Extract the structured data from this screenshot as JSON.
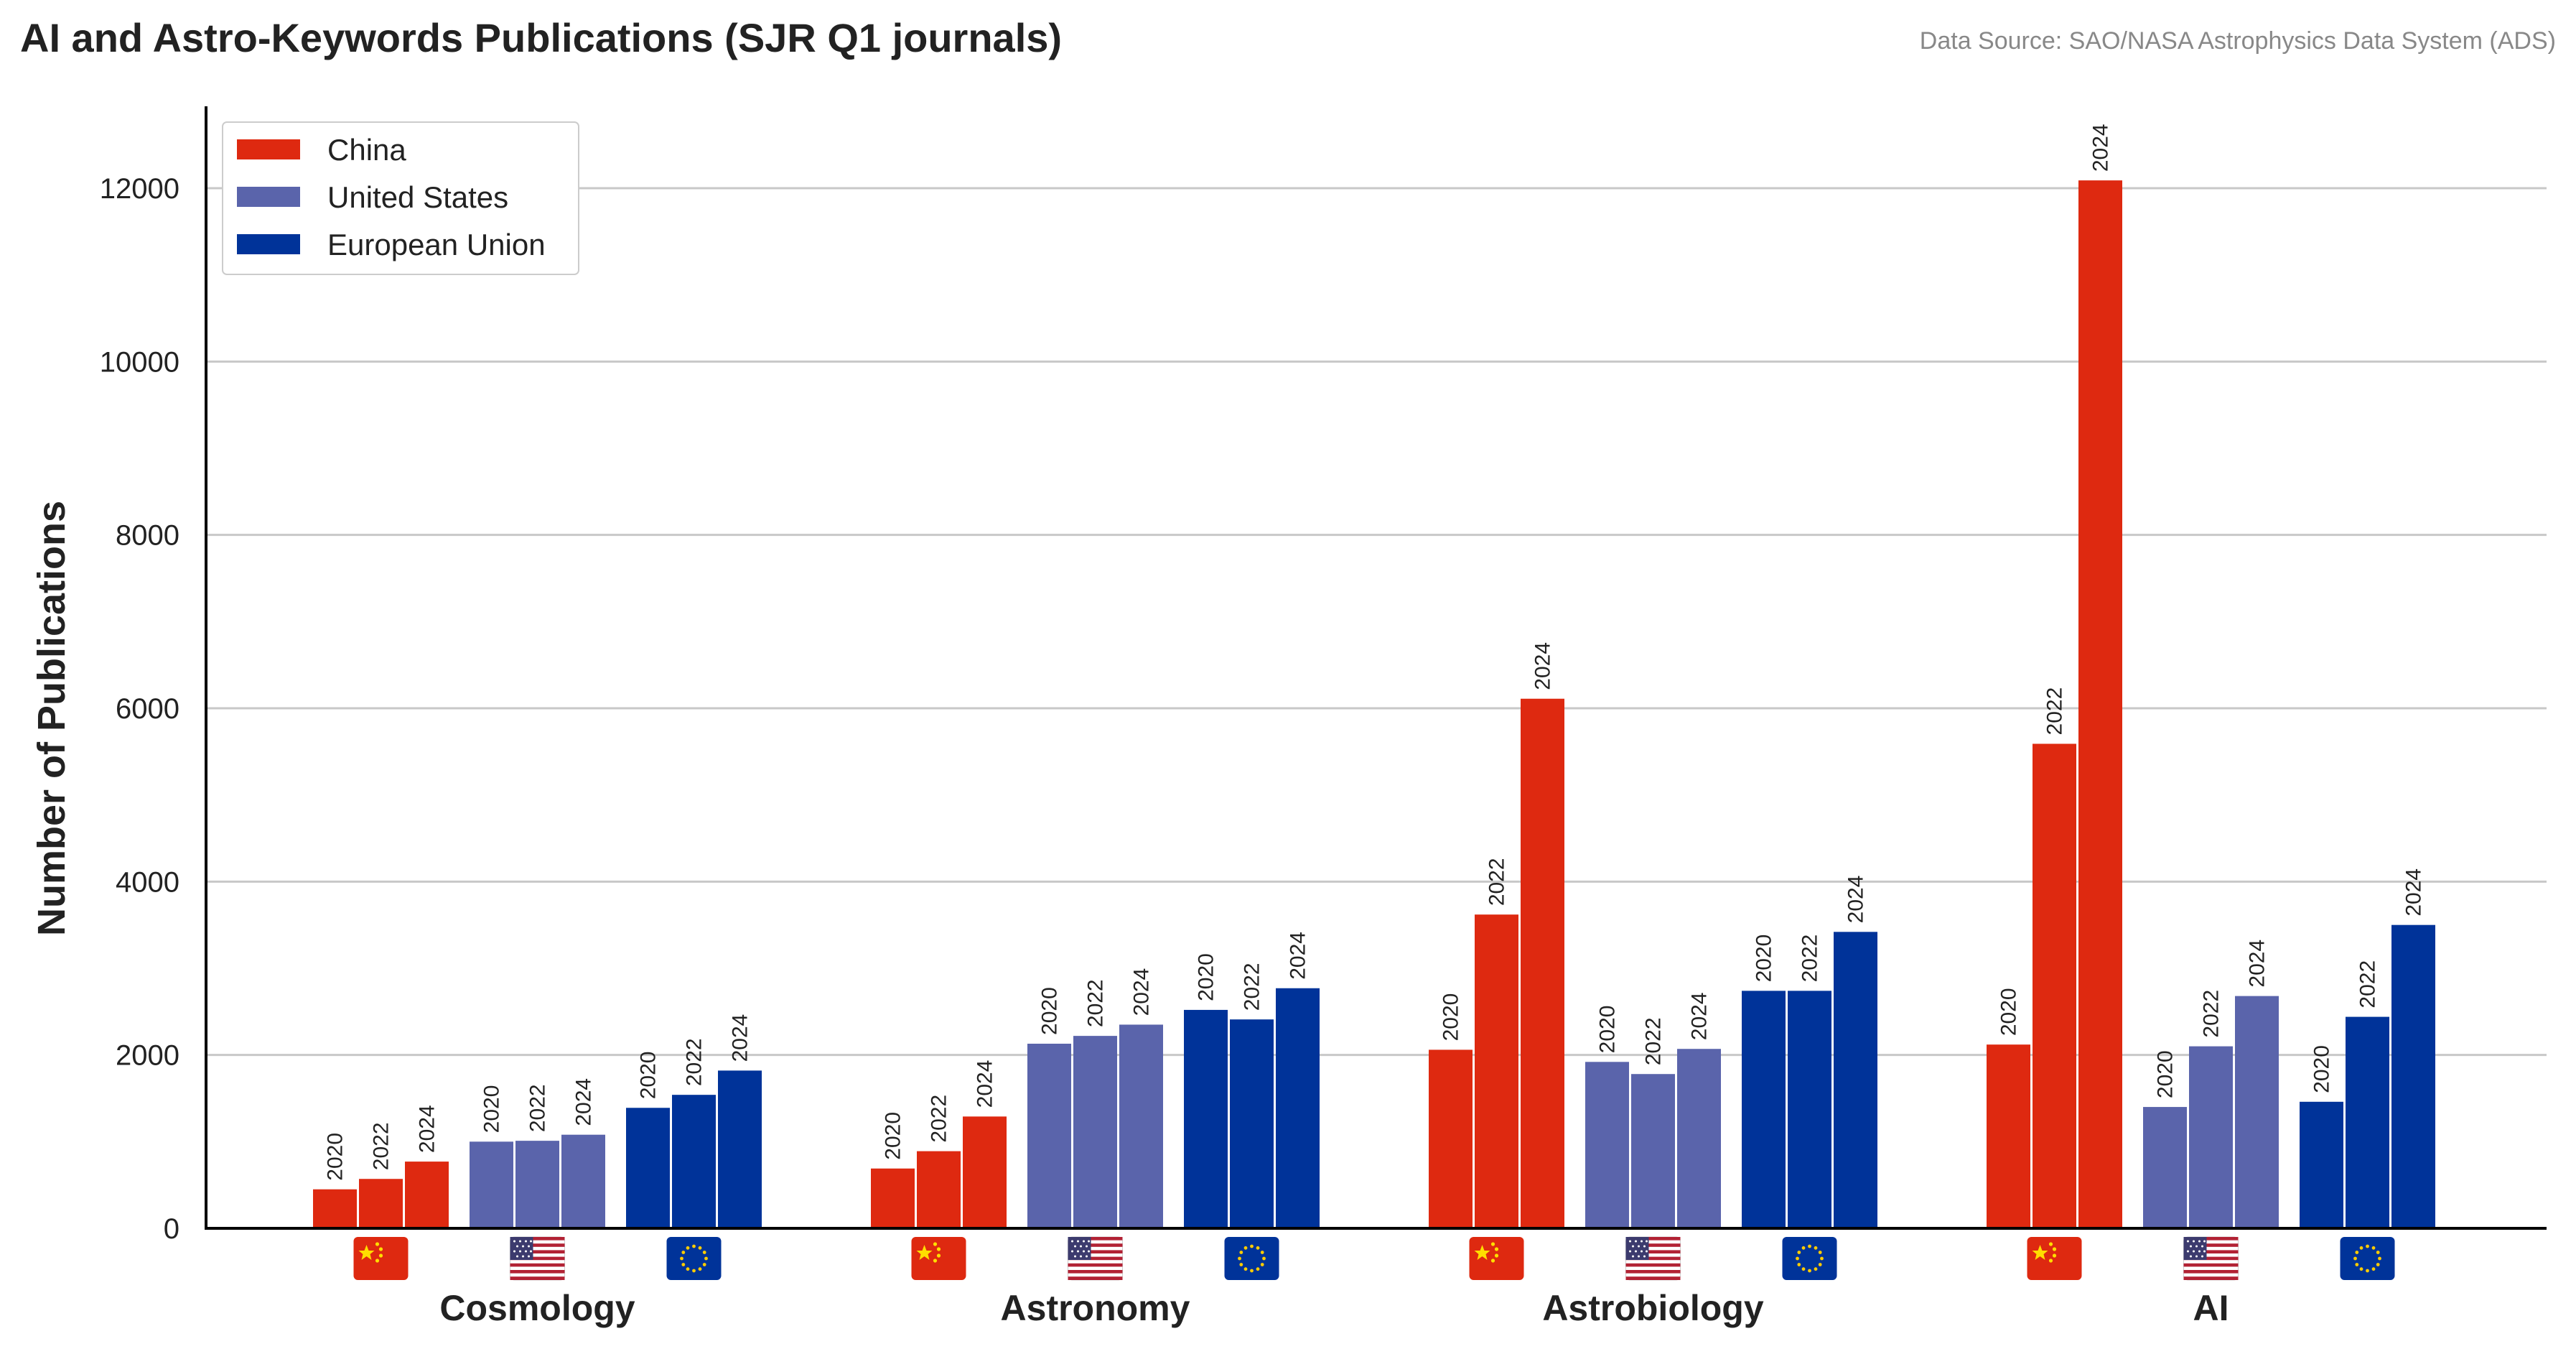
{
  "chart_data": {
    "type": "bar",
    "title": "AI and Astro-Keywords Publications (SJR Q1 journals)",
    "source": "Data Source: SAO/NASA Astrophysics Data System (ADS)",
    "ylabel": "Number of Publications",
    "ylim": [
      0,
      13000
    ],
    "yticks": [
      "0",
      "2000",
      "4000",
      "6000",
      "8000",
      "10000",
      "12000"
    ],
    "grid": true,
    "legend_position": "top-left",
    "years": [
      "2020",
      "2022",
      "2024"
    ],
    "categories": [
      "Cosmology",
      "Astronomy",
      "Astrobiology",
      "AI"
    ],
    "series": [
      {
        "name": "China",
        "color": "#de2910",
        "flag_icon": "china-flag-icon",
        "values": [
          [
            450,
            570,
            770
          ],
          [
            690,
            890,
            1290
          ],
          [
            2060,
            3620,
            6110
          ],
          [
            2120,
            5590,
            12090
          ]
        ]
      },
      {
        "name": "United States",
        "color": "#5a64ab",
        "flag_icon": "us-flag-icon",
        "values": [
          [
            1000,
            1010,
            1080
          ],
          [
            2130,
            2220,
            2350
          ],
          [
            1920,
            1780,
            2070
          ],
          [
            1400,
            2100,
            2680
          ]
        ]
      },
      {
        "name": "European Union",
        "color": "#003399",
        "flag_icon": "eu-flag-icon",
        "values": [
          [
            1390,
            1540,
            1820
          ],
          [
            2520,
            2410,
            2770
          ],
          [
            2740,
            2740,
            3420
          ],
          [
            1460,
            2440,
            3500
          ]
        ]
      }
    ]
  }
}
